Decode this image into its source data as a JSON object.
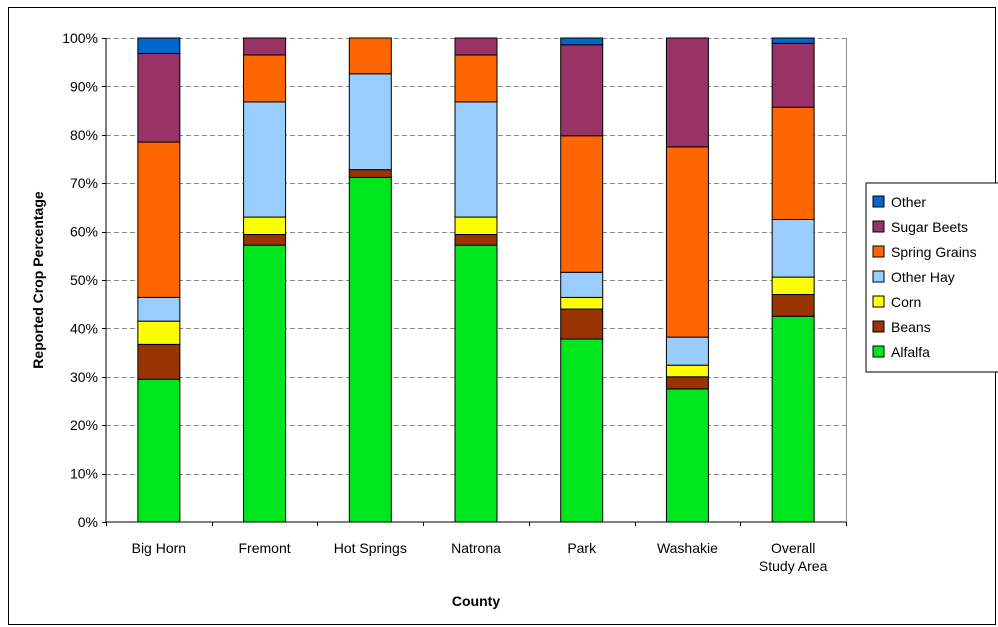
{
  "chart_data": {
    "type": "bar",
    "stacked": true,
    "percent": true,
    "xlabel": "County",
    "ylabel": "Reported Crop Percentage",
    "ylim": [
      0,
      100
    ],
    "yticks": [
      "0%",
      "10%",
      "20%",
      "30%",
      "40%",
      "50%",
      "60%",
      "70%",
      "80%",
      "90%",
      "100%"
    ],
    "grid": "horizontal dashed",
    "legend": "right",
    "categories": [
      [
        "Big Horn"
      ],
      [
        "Fremont"
      ],
      [
        "Hot Springs"
      ],
      [
        "Natrona"
      ],
      [
        "Park"
      ],
      [
        "Washakie"
      ],
      [
        "Overall",
        "Study Area"
      ]
    ],
    "series": [
      {
        "name": "Alfalfa",
        "color": "#00e61e",
        "values": [
          29.5,
          57.2,
          71.2,
          57.2,
          37.8,
          27.5,
          42.5
        ]
      },
      {
        "name": "Beans",
        "color": "#993300",
        "values": [
          7.2,
          2.2,
          1.6,
          2.2,
          6.2,
          2.5,
          4.5
        ]
      },
      {
        "name": "Corn",
        "color": "#ffff00",
        "values": [
          4.8,
          3.6,
          0.0,
          3.6,
          2.4,
          2.4,
          3.6
        ]
      },
      {
        "name": "Other Hay",
        "color": "#99ccff",
        "values": [
          4.9,
          23.8,
          19.8,
          23.8,
          5.2,
          5.8,
          11.9
        ]
      },
      {
        "name": "Spring Grains",
        "color": "#ff6600",
        "values": [
          32.1,
          9.7,
          7.4,
          9.7,
          28.2,
          39.3,
          23.2
        ]
      },
      {
        "name": "Sugar Beets",
        "color": "#993366",
        "values": [
          18.3,
          3.5,
          0.0,
          3.5,
          18.8,
          22.5,
          13.2
        ]
      },
      {
        "name": "Other",
        "color": "#0066cc",
        "values": [
          3.2,
          0.0,
          0.0,
          0.0,
          1.4,
          0.0,
          1.1
        ]
      }
    ]
  }
}
